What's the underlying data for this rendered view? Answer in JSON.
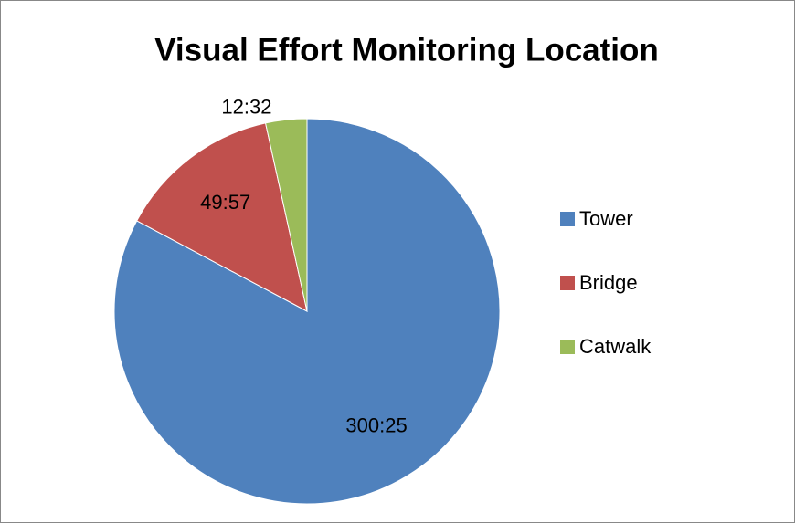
{
  "chart_data": {
    "type": "pie",
    "title": "Visual Effort Monitoring Location",
    "categories": [
      "Tower",
      "Bridge",
      "Catwalk"
    ],
    "values": [
      18025,
      2997,
      752
    ],
    "value_labels": [
      "300:25",
      "49:57",
      "12:32"
    ],
    "colors": [
      "#4f81bd",
      "#c0504d",
      "#9bbb59"
    ],
    "legend": "right"
  }
}
